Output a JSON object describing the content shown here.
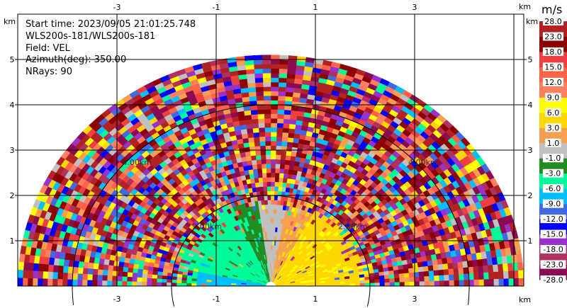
{
  "info": {
    "start_time": "Start time: 2023/09/05 21:01:25.748",
    "instrument": "WLS200s-181/WLS200s-181",
    "field": "Field: VEL",
    "azimuth": "Azimuth(deg): 350.00",
    "nrays": "NRays: 90"
  },
  "chart_data": {
    "type": "heatmap",
    "projection": "polar RHI (range-height)",
    "field": "VEL",
    "nrays": 90,
    "azimuth_deg": 350.0,
    "x_unit": "km",
    "y_unit": "km",
    "xlim": [
      -5.0,
      5.2
    ],
    "ylim": [
      0,
      6.0
    ],
    "x_ticks": [
      "-3",
      "-1",
      "1",
      "3"
    ],
    "y_ticks": [
      "1",
      "2",
      "3",
      "4",
      "5"
    ],
    "grid": true,
    "range_rings": [
      {
        "radius_km": 2,
        "label": "2.00km"
      },
      {
        "radius_km": 4,
        "label": "4.00km"
      }
    ],
    "colorbar": {
      "label": "m/s",
      "bounds": [
        -28,
        -23,
        -18,
        -15,
        -12,
        -9,
        -6,
        -3,
        -1,
        1,
        3,
        6,
        9,
        12,
        15,
        18,
        23,
        28
      ],
      "tick_labels": [
        "-28.0",
        "-23.0",
        "-18.0",
        "-15.0",
        "-12.0",
        "-9.0",
        "-6.0",
        "-3.0",
        "-1.0",
        "1.0",
        "3.0",
        "6.0",
        "9.0",
        "12.0",
        "15.0",
        "18.0",
        "23.0",
        "28.0"
      ],
      "colors": [
        "#8b0a50",
        "#b03060",
        "#9932cc",
        "#0000ff",
        "#4169e1",
        "#00bfff",
        "#00fa9a",
        "#228b22",
        "#c0c0c0",
        "#f4a050",
        "#ffd700",
        "#ffff00",
        "#ff8060",
        "#ff6347",
        "#ee4040",
        "#8b0000",
        "#b22222"
      ]
    }
  }
}
